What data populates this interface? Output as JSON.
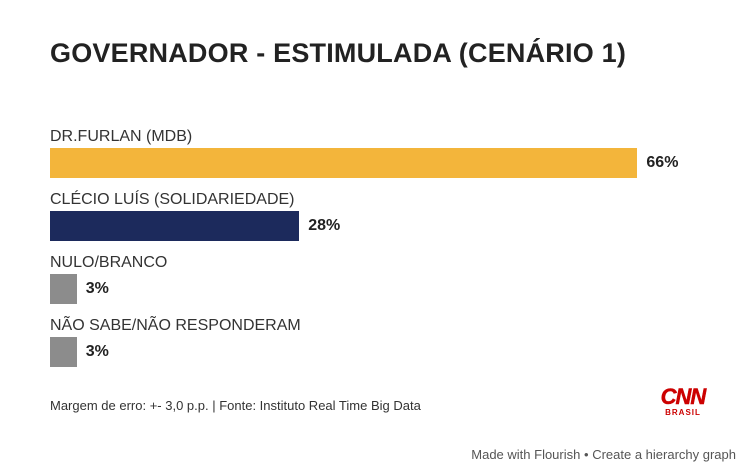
{
  "chart_data": {
    "type": "bar",
    "orientation": "horizontal",
    "title": "GOVERNADOR - ESTIMULADA (CENÁRIO 1)",
    "categories": [
      "DR.FURLAN (MDB)",
      "CLÉCIO LUÍS (SOLIDARIEDADE)",
      "NULO/BRANCO",
      "NÃO SABE/NÃO RESPONDERAM"
    ],
    "values": [
      66,
      28,
      3,
      3
    ],
    "value_labels": [
      "66%",
      "28%",
      "3%",
      "3%"
    ],
    "colors": [
      "#f3b53b",
      "#1c2a5c",
      "#8c8c8c",
      "#8c8c8c"
    ],
    "xlim": [
      0,
      100
    ],
    "grid": false,
    "legend": "none"
  },
  "footer": {
    "note": "Margem de erro: +- 3,0 p.p. | Fonte: Instituto Real Time Big Data"
  },
  "logo": {
    "main": "CNN",
    "sub": "BRASIL"
  },
  "attribution": {
    "made_with": "Made with Flourish",
    "separator": "•",
    "create": "Create a hierarchy graph"
  }
}
